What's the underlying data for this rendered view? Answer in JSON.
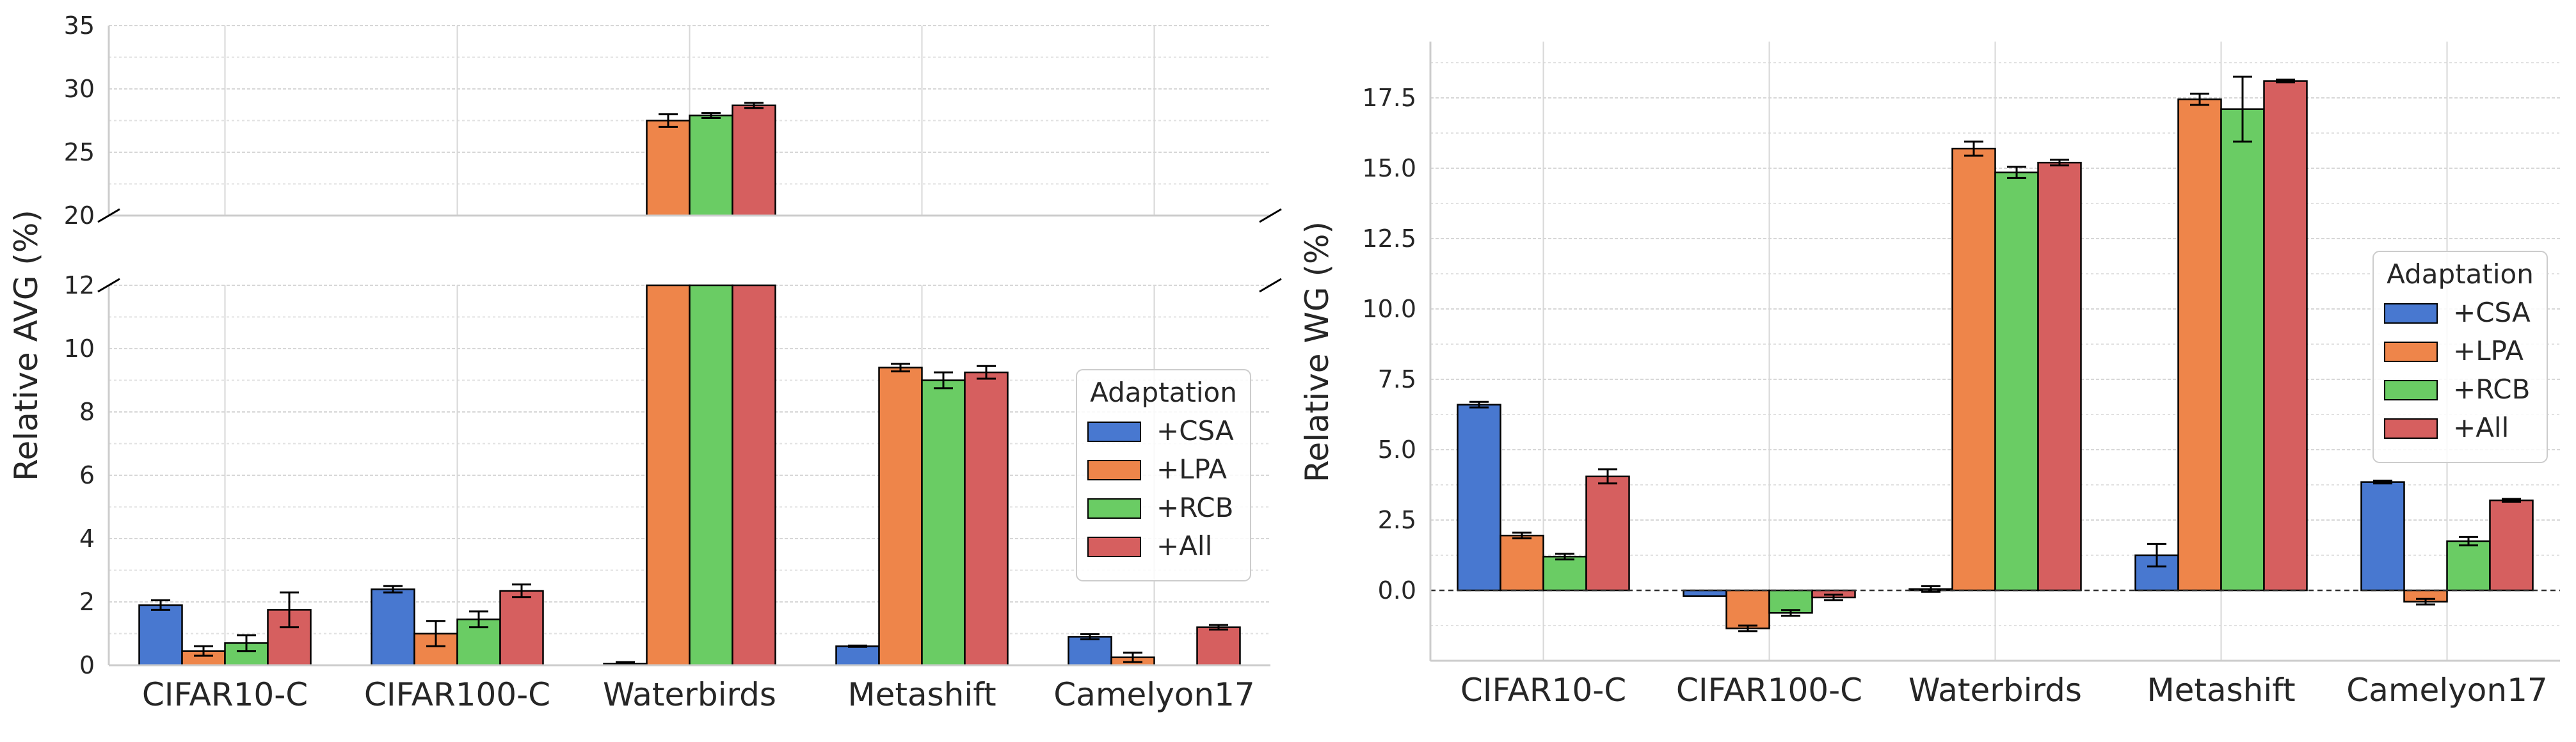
{
  "chart_data": [
    {
      "type": "bar",
      "ylabel": "Relative AVG (%)",
      "categories": [
        "CIFAR10-C",
        "CIFAR100-C",
        "Waterbirds",
        "Metashift",
        "Camelyon17"
      ],
      "broken_axis": true,
      "lower_ylim": [
        0,
        12
      ],
      "upper_ylim": [
        20,
        35
      ],
      "lower_yticks": [
        0,
        2,
        4,
        6,
        8,
        10,
        12
      ],
      "upper_yticks": [
        20,
        25,
        30,
        35
      ],
      "legend_title": "Adaptation",
      "legend_position": "right",
      "grid": true,
      "series": [
        {
          "name": "+CSA",
          "color": "#4878d0",
          "values": [
            1.9,
            2.4,
            0.05,
            0.6,
            0.9
          ],
          "errors": [
            0.15,
            0.1,
            0.05,
            0.02,
            0.08
          ]
        },
        {
          "name": "+LPA",
          "color": "#ee854a",
          "values": [
            0.45,
            1.0,
            27.5,
            9.4,
            0.25
          ],
          "errors": [
            0.15,
            0.4,
            0.5,
            0.12,
            0.15
          ]
        },
        {
          "name": "+RCB",
          "color": "#6acc64",
          "values": [
            0.7,
            1.45,
            27.9,
            9.0,
            0.0
          ],
          "errors": [
            0.25,
            0.25,
            0.2,
            0.25,
            0.0
          ]
        },
        {
          "name": "+All",
          "color": "#d65f5f",
          "values": [
            1.75,
            2.35,
            28.7,
            9.25,
            1.2
          ],
          "errors": [
            0.55,
            0.2,
            0.2,
            0.2,
            0.07
          ]
        }
      ]
    },
    {
      "type": "bar",
      "ylabel": "Relative WG (%)",
      "categories": [
        "CIFAR10-C",
        "CIFAR100-C",
        "Waterbirds",
        "Metashift",
        "Camelyon17"
      ],
      "ylim": [
        -2.5,
        19.5
      ],
      "yticks": [
        "0.0",
        "2.5",
        "5.0",
        "7.5",
        "10.0",
        "12.5",
        "15.0",
        "17.5"
      ],
      "zero_line": "dashed",
      "legend_title": "Adaptation",
      "legend_position": "right",
      "grid": true,
      "series": [
        {
          "name": "+CSA",
          "color": "#4878d0",
          "values": [
            6.6,
            -0.2,
            0.05,
            1.25,
            3.85
          ],
          "errors": [
            0.1,
            0.0,
            0.1,
            0.4,
            0.05
          ]
        },
        {
          "name": "+LPA",
          "color": "#ee854a",
          "values": [
            1.95,
            -1.35,
            15.7,
            17.45,
            -0.4
          ],
          "errors": [
            0.1,
            0.1,
            0.25,
            0.2,
            0.1
          ]
        },
        {
          "name": "+RCB",
          "color": "#6acc64",
          "values": [
            1.2,
            -0.8,
            14.85,
            17.1,
            1.75
          ],
          "errors": [
            0.1,
            0.1,
            0.2,
            1.15,
            0.15
          ]
        },
        {
          "name": "+All",
          "color": "#d65f5f",
          "values": [
            4.05,
            -0.25,
            15.2,
            18.1,
            3.2
          ],
          "errors": [
            0.25,
            0.1,
            0.1,
            0.05,
            0.05
          ]
        }
      ]
    }
  ]
}
